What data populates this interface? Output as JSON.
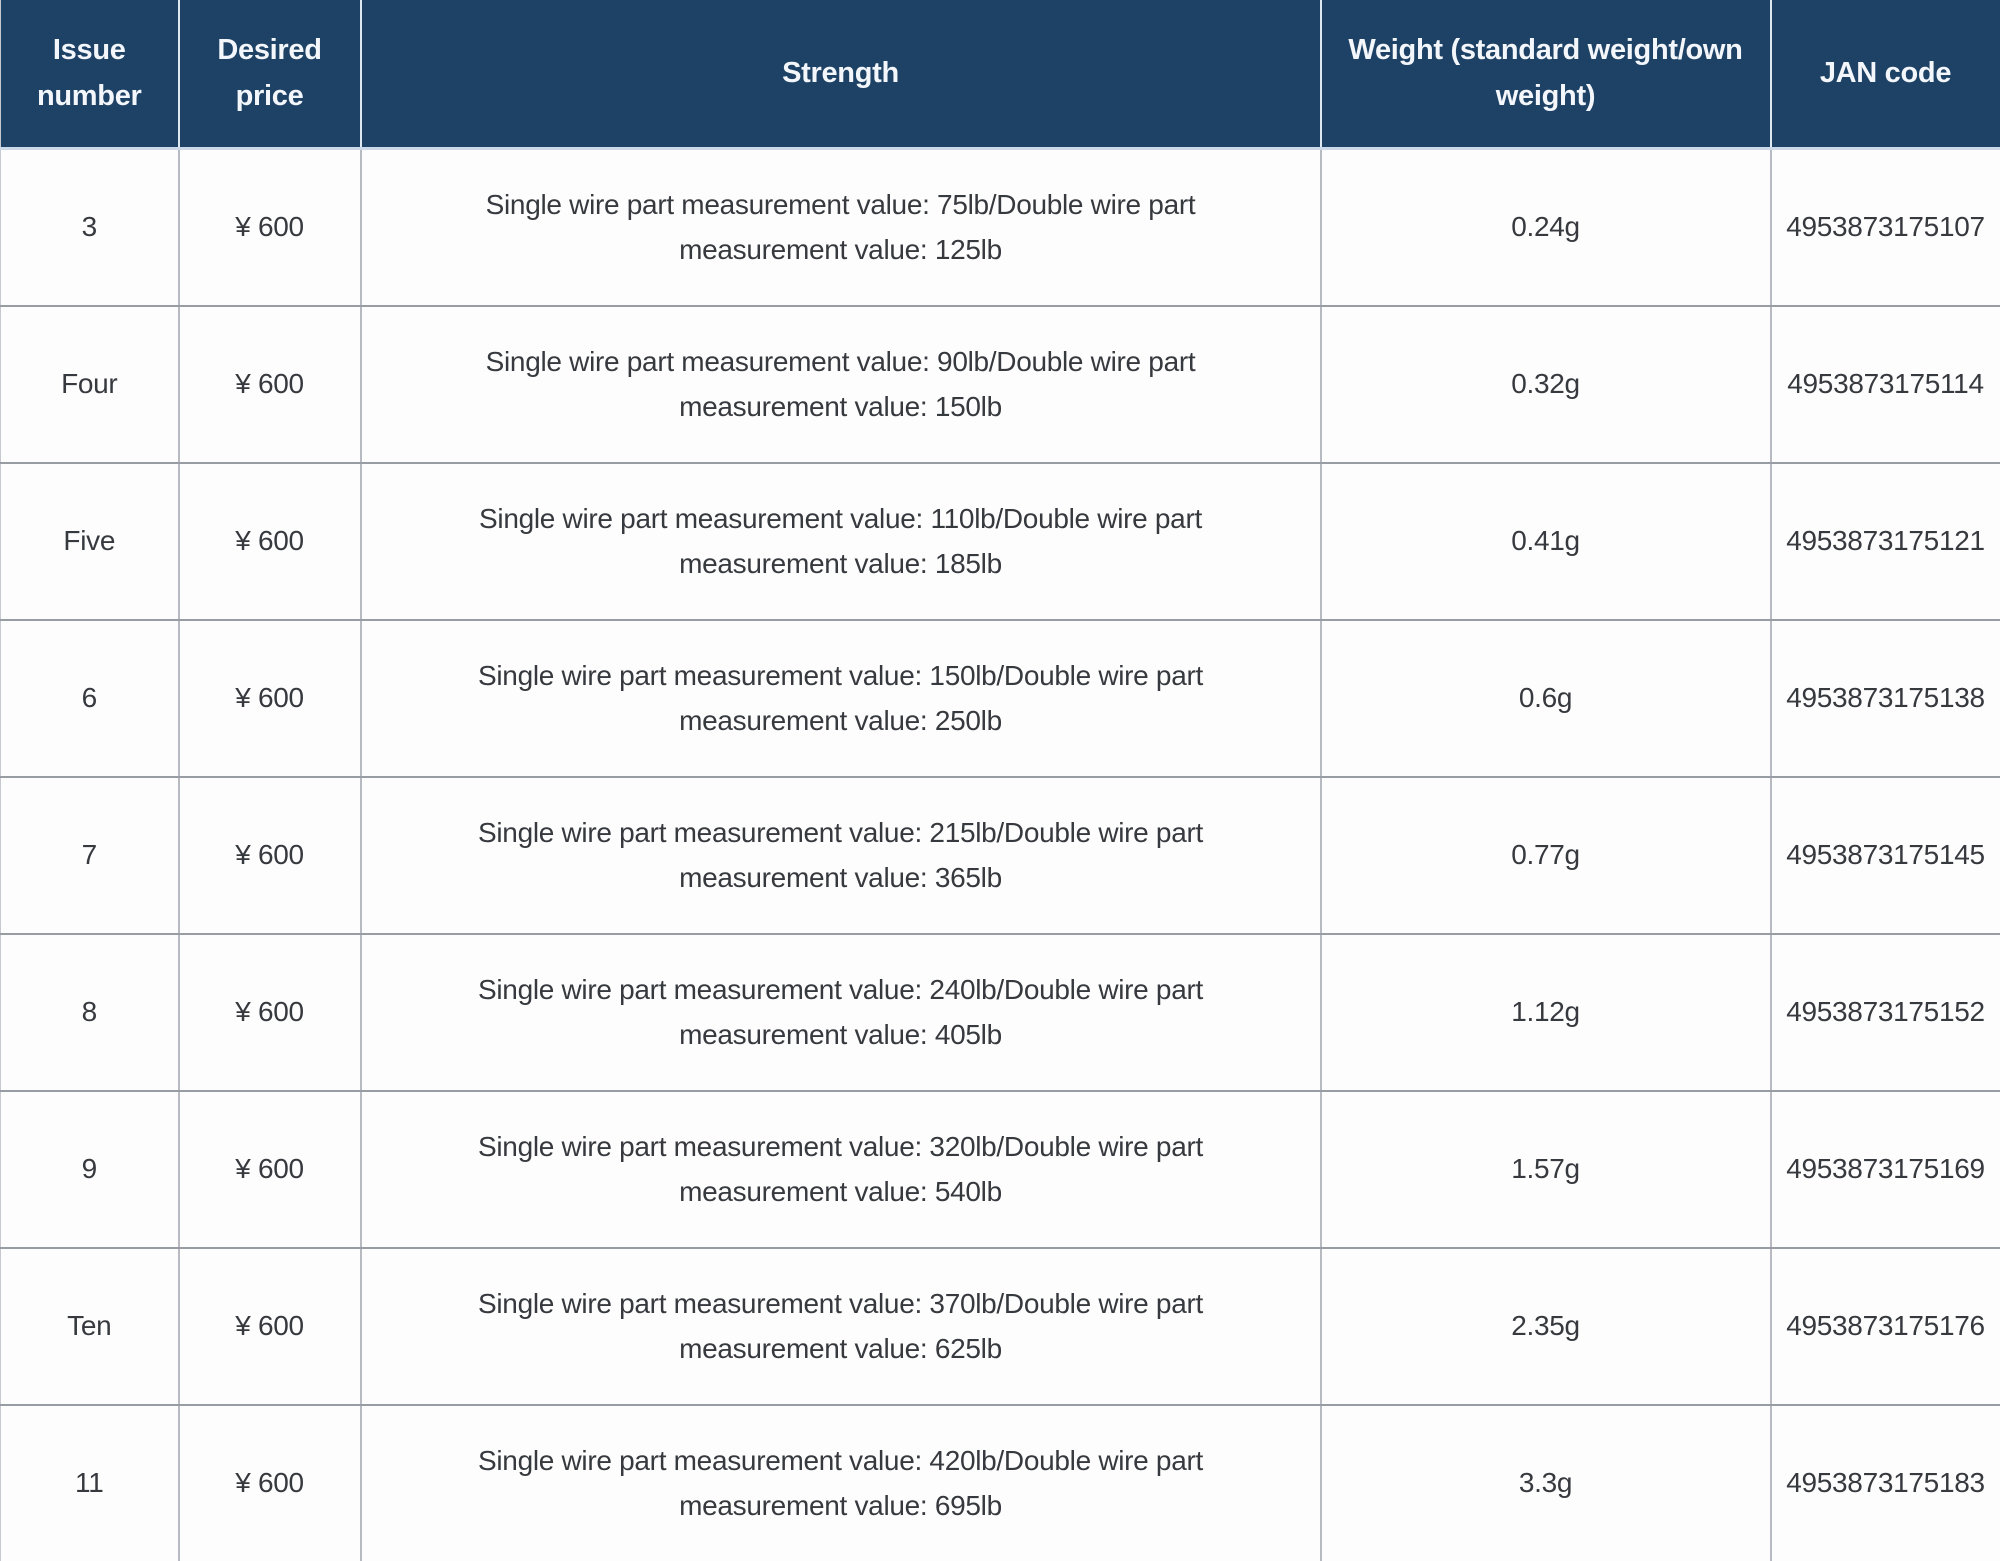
{
  "table": {
    "columns": [
      "Issue number",
      "Desired price",
      "Strength",
      "Weight (standard weight/own weight)",
      "JAN code"
    ],
    "rows": [
      {
        "issue": "3",
        "price": "¥ 600",
        "strength": "Single wire part measurement value: 75lb/Double wire part measurement value: 125lb",
        "weight": "0.24g",
        "jan": "4953873175107"
      },
      {
        "issue": "Four",
        "price": "¥ 600",
        "strength": "Single wire part measurement value: 90lb/Double wire part measurement value: 150lb",
        "weight": "0.32g",
        "jan": "4953873175114"
      },
      {
        "issue": "Five",
        "price": "¥ 600",
        "strength": "Single wire part measurement value: 110lb/Double wire part measurement value: 185lb",
        "weight": "0.41g",
        "jan": "4953873175121"
      },
      {
        "issue": "6",
        "price": "¥ 600",
        "strength": "Single wire part measurement value: 150lb/Double wire part measurement value: 250lb",
        "weight": "0.6g",
        "jan": "4953873175138"
      },
      {
        "issue": "7",
        "price": "¥ 600",
        "strength": "Single wire part measurement value: 215lb/Double wire part measurement value: 365lb",
        "weight": "0.77g",
        "jan": "4953873175145"
      },
      {
        "issue": "8",
        "price": "¥ 600",
        "strength": "Single wire part measurement value: 240lb/Double wire part measurement value: 405lb",
        "weight": "1.12g",
        "jan": "4953873175152"
      },
      {
        "issue": "9",
        "price": "¥ 600",
        "strength": "Single wire part measurement value: 320lb/Double wire part measurement value: 540lb",
        "weight": "1.57g",
        "jan": "4953873175169"
      },
      {
        "issue": "Ten",
        "price": "¥ 600",
        "strength": "Single wire part measurement value: 370lb/Double wire part measurement value: 625lb",
        "weight": "2.35g",
        "jan": "4953873175176"
      },
      {
        "issue": "11",
        "price": "¥ 600",
        "strength": "Single wire part measurement value: 420lb/Double wire part measurement value: 695lb",
        "weight": "3.3g",
        "jan": "4953873175183"
      }
    ]
  },
  "colors": {
    "header_bg": "#1e4265",
    "header_text": "#f3f6fa",
    "body_text": "#36393e",
    "row_bg": "#fdfdfd",
    "grid_h": "#989da4",
    "grid_v": "#b7bbc1",
    "footer_strip": "#d8e3f0"
  }
}
